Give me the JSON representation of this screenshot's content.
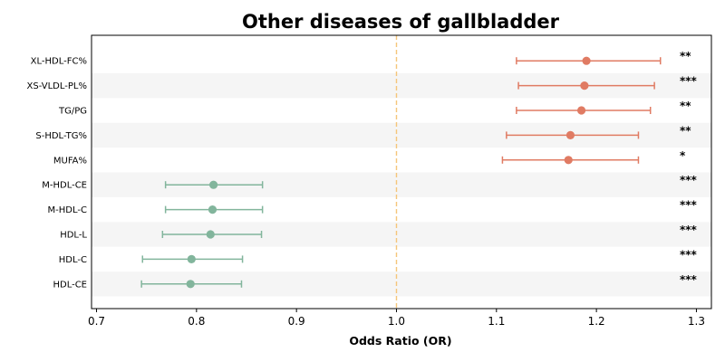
{
  "chart_data": {
    "type": "forest",
    "title": "Other diseases of gallbladder",
    "xlabel": "Odds Ratio (OR)",
    "xlim": [
      0.695,
      1.315
    ],
    "xticks": [
      0.7,
      0.8,
      0.9,
      1.0,
      1.1,
      1.2,
      1.3
    ],
    "xtick_labels": [
      "0.7",
      "0.8",
      "0.9",
      "1.0",
      "1.1",
      "1.2",
      "1.3"
    ],
    "reference_line": 1.0,
    "colors": {
      "positive": "#e07b63",
      "negative": "#82b59c",
      "reference": "#f5c67a",
      "band": "#f5f5f5"
    },
    "rows": [
      {
        "label": "XL-HDL-FC%",
        "or": 1.19,
        "lo": 1.12,
        "hi": 1.264,
        "sig": "**"
      },
      {
        "label": "XS-VLDL-PL%",
        "or": 1.188,
        "lo": 1.122,
        "hi": 1.258,
        "sig": "***"
      },
      {
        "label": "TG/PG",
        "or": 1.185,
        "lo": 1.12,
        "hi": 1.254,
        "sig": "**"
      },
      {
        "label": "S-HDL-TG%",
        "or": 1.174,
        "lo": 1.11,
        "hi": 1.242,
        "sig": "**"
      },
      {
        "label": "MUFA%",
        "or": 1.172,
        "lo": 1.106,
        "hi": 1.242,
        "sig": "*"
      },
      {
        "label": "M-HDL-CE",
        "or": 0.817,
        "lo": 0.769,
        "hi": 0.866,
        "sig": "***"
      },
      {
        "label": "M-HDL-C",
        "or": 0.816,
        "lo": 0.769,
        "hi": 0.866,
        "sig": "***"
      },
      {
        "label": "HDL-L",
        "or": 0.814,
        "lo": 0.766,
        "hi": 0.865,
        "sig": "***"
      },
      {
        "label": "HDL-C",
        "or": 0.795,
        "lo": 0.746,
        "hi": 0.846,
        "sig": "***"
      },
      {
        "label": "HDL-CE",
        "or": 0.794,
        "lo": 0.745,
        "hi": 0.845,
        "sig": "***"
      }
    ]
  }
}
